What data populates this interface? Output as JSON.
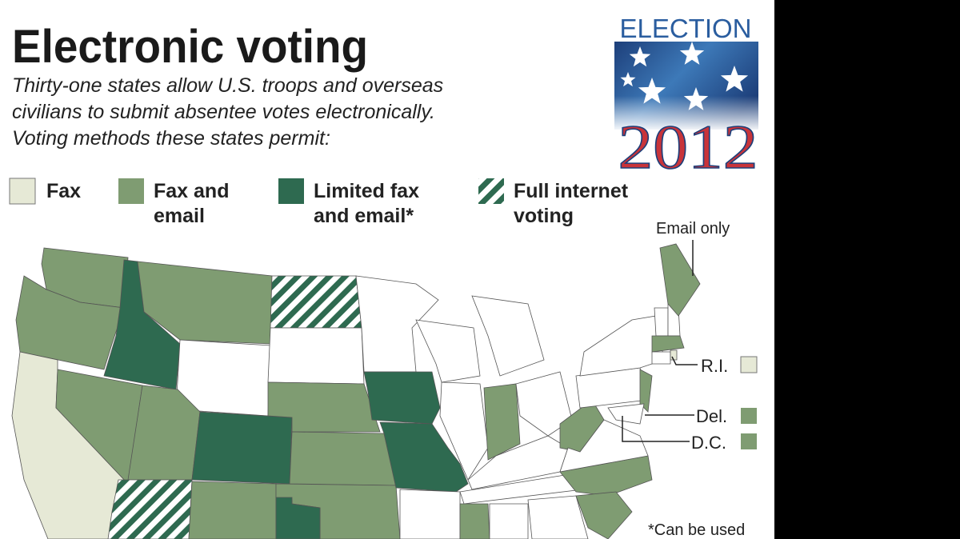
{
  "header": {
    "title": "Electronic voting",
    "subtitle": [
      "Thirty-one states allow U.S. troops and overseas",
      "civilians to submit absentee votes electronically.",
      "Voting methods these states permit:"
    ]
  },
  "badge": {
    "top": "ELECTION",
    "year": "2012"
  },
  "legend": [
    "Fax",
    "Fax and email",
    "Limited fax and email*",
    "Full internet voting"
  ],
  "annotations": {
    "email_only": "Email only",
    "ri": "R.I.",
    "del": "Del.",
    "dc": "D.C.",
    "footnote": "*Can be used"
  }
}
